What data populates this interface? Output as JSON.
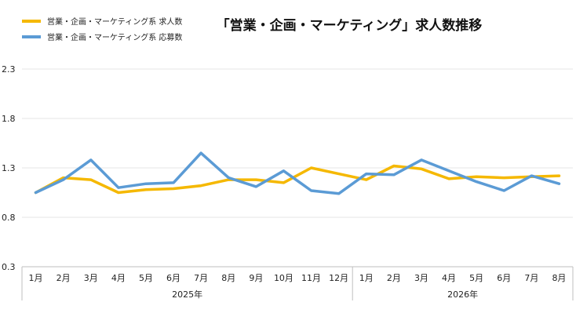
{
  "chart_data": {
    "type": "line",
    "title": "「営業・企画・マーケティング」求人数推移",
    "xlabel": "",
    "ylabel": "",
    "categories": [
      "1月",
      "2月",
      "3月",
      "4月",
      "5月",
      "6月",
      "7月",
      "8月",
      "9月",
      "10月",
      "11月",
      "12月",
      "1月",
      "2月",
      "3月",
      "4月",
      "5月",
      "6月",
      "7月",
      "8月"
    ],
    "groups": [
      {
        "label": "2025年",
        "start": 0,
        "end": 11
      },
      {
        "label": "2026年",
        "start": 12,
        "end": 19
      }
    ],
    "ylim": [
      0.3,
      2.3
    ],
    "yticks": [
      "0.3",
      "0.8",
      "1.3",
      "1.8",
      "2.3"
    ],
    "ytick_values": [
      0.3,
      0.8,
      1.3,
      1.8,
      2.3
    ],
    "grid": "horizontal",
    "legend_position": "top-left",
    "series": [
      {
        "name": "営業・企画・マーケティング系 求人数",
        "color": "#f5b800",
        "values": [
          1.05,
          1.2,
          1.18,
          1.05,
          1.08,
          1.09,
          1.12,
          1.18,
          1.18,
          1.15,
          1.3,
          1.24,
          1.18,
          1.32,
          1.29,
          1.19,
          1.21,
          1.2,
          1.21,
          1.22
        ]
      },
      {
        "name": "営業・企画・マーケティング系 応募数",
        "color": "#5b9bd5",
        "values": [
          1.05,
          1.18,
          1.38,
          1.1,
          1.14,
          1.15,
          1.45,
          1.2,
          1.11,
          1.27,
          1.07,
          1.04,
          1.24,
          1.23,
          1.38,
          1.27,
          1.16,
          1.07,
          1.22,
          1.14
        ]
      }
    ]
  }
}
